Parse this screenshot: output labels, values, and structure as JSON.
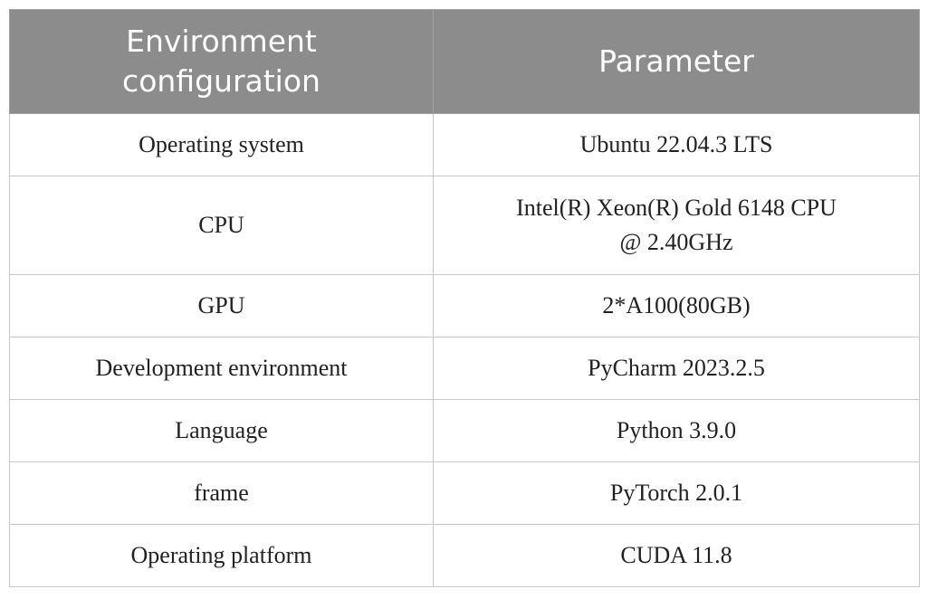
{
  "table": {
    "headers": [
      "Environment configuration",
      "Parameter"
    ],
    "header_lines": [
      [
        "Environment",
        "configuration"
      ],
      [
        "Parameter"
      ]
    ],
    "rows": [
      {
        "config": "Operating system",
        "param_lines": [
          "Ubuntu 22.04.3 LTS"
        ]
      },
      {
        "config": "CPU",
        "param_lines": [
          "Intel(R) Xeon(R) Gold 6148 CPU",
          "@ 2.40GHz"
        ]
      },
      {
        "config": "GPU",
        "param_lines": [
          "2*A100(80GB)"
        ]
      },
      {
        "config": "Development environment",
        "param_lines": [
          "PyCharm 2023.2.5"
        ]
      },
      {
        "config": "Language",
        "param_lines": [
          "Python 3.9.0"
        ]
      },
      {
        "config": "frame",
        "param_lines": [
          "PyTorch 2.0.1"
        ]
      },
      {
        "config": "Operating platform",
        "param_lines": [
          "CUDA 11.8"
        ]
      }
    ]
  },
  "colors": {
    "header_bg": "#8c8c8c",
    "header_text": "#ffffff",
    "border": "#c8c8c8",
    "body_text": "#222222"
  }
}
